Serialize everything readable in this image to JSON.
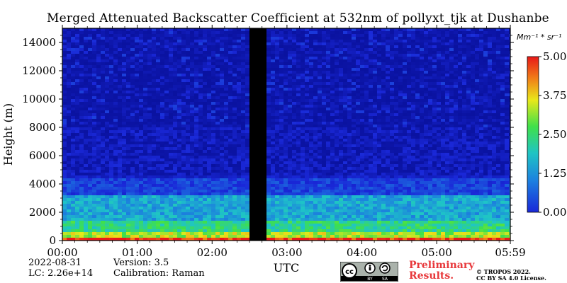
{
  "header": {
    "title": "Merged Attenuated Backscatter Coefficient at 532nm of pollyxt_tjk at Dushanbe"
  },
  "colorbar": {
    "unit_label": "Mm⁻¹ * sr⁻¹",
    "ticks": [
      "5.00",
      "3.75",
      "2.50",
      "1.25",
      "0.00"
    ],
    "range": [
      0,
      5
    ]
  },
  "footer": {
    "date": "2022-08-31",
    "lc": "LC: 2.26e+14",
    "version": "Version: 3.5",
    "calibration": "Calibration: Raman",
    "preliminary": "Preliminary\nResults.",
    "copyright": "© TROPOS 2022.\nCC BY SA 4.0 License.",
    "cc_badge": [
      "cc",
      "BY",
      "SA"
    ]
  },
  "chart_data": {
    "type": "heatmap",
    "title": "Merged Attenuated Backscatter Coefficient at 532nm of pollyxt_tjk at Dushanbe",
    "xlabel": "UTC",
    "ylabel": "Height (m)",
    "x_ticks": [
      "00:00",
      "01:00",
      "02:00",
      "03:00",
      "04:00",
      "05:00",
      "05:59"
    ],
    "x_range_hours": [
      0,
      5.983
    ],
    "y_ticks": [
      0,
      2000,
      4000,
      6000,
      8000,
      10000,
      12000,
      14000
    ],
    "ylim": [
      0,
      15000
    ],
    "colorbar_range": [
      0,
      5
    ],
    "colormap": "jet-like (blue → cyan → green → yellow → red)",
    "data_gap_utc": [
      "02:32",
      "02:41"
    ],
    "height_profile": [
      {
        "height_range": [
          0,
          250
        ],
        "level": 5.0
      },
      {
        "height_range": [
          250,
          600
        ],
        "level": 3.3
      },
      {
        "height_range": [
          600,
          1500
        ],
        "level": 2.4
      },
      {
        "height_range": [
          1500,
          3300
        ],
        "level": 1.7
      },
      {
        "height_range": [
          3300,
          4500
        ],
        "level": 0.8
      },
      {
        "height_range": [
          4500,
          8000
        ],
        "level": 0.4
      },
      {
        "height_range": [
          8000,
          15000
        ],
        "level": 0.15
      }
    ]
  },
  "colors": {
    "background": "#ffffff",
    "gap": "#000000",
    "preliminary": "#e8383b"
  }
}
